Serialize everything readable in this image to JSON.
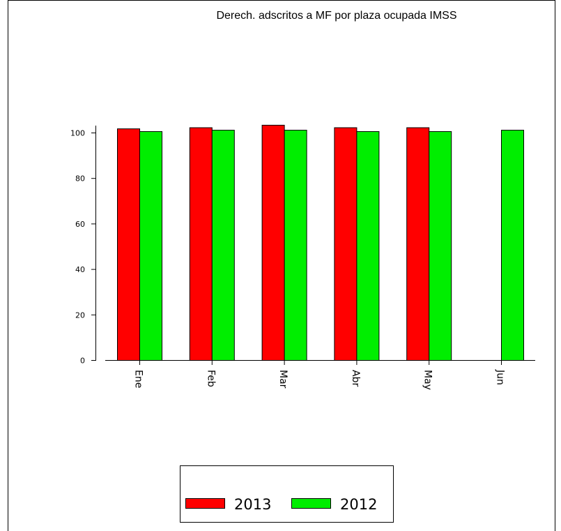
{
  "chart_data": {
    "type": "bar",
    "title": "Derech. adscritos a MF por plaza ocupada IMSS",
    "xlabel": "",
    "ylabel": "",
    "categories": [
      "Ene",
      "Feb",
      "Mar",
      "Abr",
      "May",
      "Jun"
    ],
    "series": [
      {
        "name": "2013",
        "color": "#ff0000",
        "values": [
          101.8,
          102.3,
          103.4,
          102.3,
          102.3,
          null
        ]
      },
      {
        "name": "2012",
        "color": "#00ee00",
        "values": [
          100.6,
          101.2,
          101.2,
          100.6,
          100.6,
          101.2
        ]
      }
    ],
    "ylim": [
      0,
      100
    ],
    "yticks": [
      "0",
      "20",
      "40",
      "60",
      "80",
      "100"
    ],
    "grid": false,
    "legend_position": "bottom-center"
  }
}
